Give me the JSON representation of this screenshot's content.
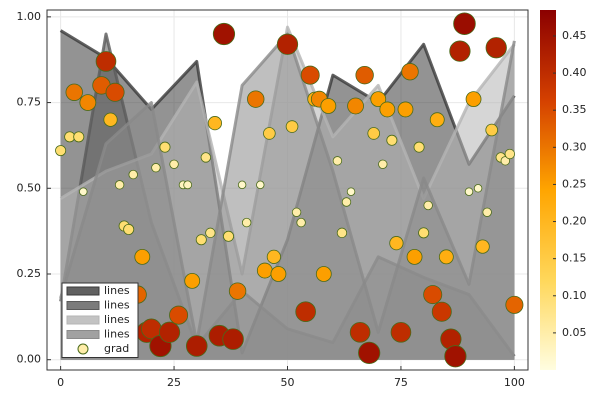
{
  "chart_data": {
    "type": "line",
    "x": [
      0,
      10,
      20,
      30,
      40,
      50,
      60,
      70,
      80,
      90,
      100
    ],
    "series": [
      {
        "name": "lines",
        "color": "#3a3a3a",
        "values": [
          0.96,
          0.88,
          0.73,
          0.87,
          0.02,
          0.35,
          0.83,
          0.75,
          0.92,
          0.57,
          0.77
        ]
      },
      {
        "name": "lines",
        "color": "#5a5a5a",
        "values": [
          0.17,
          0.95,
          0.4,
          0.04,
          0.2,
          0.09,
          0.05,
          0.3,
          0.24,
          0.19,
          0.01
        ]
      },
      {
        "name": "lines",
        "color": "#b4b4b4",
        "values": [
          0.47,
          0.55,
          0.6,
          0.81,
          0.25,
          0.97,
          0.65,
          0.8,
          0.47,
          0.75,
          0.92
        ]
      },
      {
        "name": "lines",
        "color": "#8a8a8a",
        "values": [
          0.18,
          0.63,
          0.75,
          0.05,
          0.8,
          0.95,
          0.55,
          0.08,
          0.53,
          0.22,
          0.93
        ]
      }
    ],
    "scatter": {
      "name": "grad",
      "x": [
        0,
        2,
        3,
        4,
        5,
        6,
        9,
        10,
        11,
        12,
        13,
        14,
        15,
        16,
        17,
        18,
        19,
        20,
        21,
        22,
        23,
        24,
        25,
        26,
        27,
        28,
        29,
        30,
        31,
        32,
        33,
        34,
        35,
        36,
        37,
        38,
        39,
        40,
        41,
        43,
        44,
        45,
        46,
        47,
        48,
        50,
        51,
        52,
        53,
        54,
        55,
        56,
        57,
        58,
        59,
        61,
        62,
        63,
        64,
        65,
        66,
        67,
        68,
        69,
        70,
        71,
        72,
        73,
        74,
        75,
        76,
        77,
        78,
        79,
        80,
        81,
        82,
        83,
        84,
        85,
        86,
        87,
        88,
        89,
        90,
        91,
        92,
        93,
        94,
        95,
        96,
        97,
        98,
        99,
        100
      ],
      "values": [
        0.61,
        0.65,
        0.78,
        0.65,
        0.49,
        0.75,
        0.8,
        0.87,
        0.7,
        0.78,
        0.51,
        0.39,
        0.38,
        0.54,
        0.19,
        0.3,
        0.08,
        0.09,
        0.56,
        0.04,
        0.62,
        0.08,
        0.57,
        0.13,
        0.51,
        0.51,
        0.23,
        0.04,
        0.35,
        0.59,
        0.37,
        0.69,
        0.07,
        0.95,
        0.36,
        0.06,
        0.2,
        0.51,
        0.4,
        0.76,
        0.51,
        0.26,
        0.66,
        0.3,
        0.25,
        0.92,
        0.68,
        0.43,
        0.4,
        0.14,
        0.83,
        0.76,
        0.76,
        0.25,
        0.74,
        0.58,
        0.37,
        0.46,
        0.49,
        0.74,
        0.08,
        0.83,
        0.02,
        0.66,
        0.76,
        0.57,
        0.73,
        0.64,
        0.34,
        0.08,
        0.73,
        0.84,
        0.3,
        0.62,
        0.37,
        0.45,
        0.19,
        0.7,
        0.14,
        0.3,
        0.06,
        0.01,
        0.9,
        0.98,
        0.49,
        0.76,
        0.5,
        0.33,
        0.43,
        0.67,
        0.91,
        0.59,
        0.58,
        0.6,
        0.16
      ],
      "z": [
        0.1,
        0.1,
        0.3,
        0.1,
        0.02,
        0.28,
        0.33,
        0.4,
        0.2,
        0.35,
        0.05,
        0.1,
        0.1,
        0.05,
        0.32,
        0.25,
        0.42,
        0.4,
        0.05,
        0.45,
        0.1,
        0.42,
        0.05,
        0.35,
        0.03,
        0.03,
        0.25,
        0.43,
        0.1,
        0.08,
        0.08,
        0.2,
        0.43,
        0.45,
        0.1,
        0.43,
        0.3,
        0.02,
        0.05,
        0.3,
        0.02,
        0.25,
        0.15,
        0.2,
        0.25,
        0.42,
        0.15,
        0.05,
        0.05,
        0.4,
        0.35,
        0.22,
        0.28,
        0.25,
        0.25,
        0.05,
        0.08,
        0.05,
        0.02,
        0.28,
        0.4,
        0.33,
        0.45,
        0.15,
        0.25,
        0.05,
        0.25,
        0.1,
        0.2,
        0.4,
        0.25,
        0.3,
        0.25,
        0.1,
        0.1,
        0.05,
        0.35,
        0.22,
        0.38,
        0.22,
        0.42,
        0.45,
        0.42,
        0.46,
        0.02,
        0.25,
        0.02,
        0.2,
        0.05,
        0.15,
        0.42,
        0.08,
        0.05,
        0.08,
        0.32
      ]
    },
    "colormap": [
      "#fffde0",
      "#ffd75a",
      "#ffa500",
      "#d44000",
      "#8b0000"
    ],
    "colorbar": {
      "lim": [
        0,
        0.485
      ],
      "ticks": [
        0.05,
        {
          "value": 0.1,
          "label": "0.10"
        },
        0.15,
        {
          "value": 0.2,
          "label": "0.20"
        },
        0.25,
        {
          "value": 0.3,
          "label": "0.30"
        },
        0.35,
        {
          "value": 0.4,
          "label": "0.40"
        },
        0.45
      ]
    },
    "xlim": [
      -3,
      103
    ],
    "xticks": [
      0,
      25,
      50,
      75,
      100
    ],
    "ylim": [
      -0.03,
      1.02
    ],
    "yticks": [
      {
        "value": 0,
        "label": "0.00"
      },
      {
        "value": 0.25,
        "label": "0.25"
      },
      {
        "value": 0.5,
        "label": "0.50"
      },
      {
        "value": 0.75,
        "label": "0.75"
      },
      {
        "value": 1,
        "label": "1.00"
      }
    ],
    "grid": true,
    "legend": "bottom-left"
  }
}
